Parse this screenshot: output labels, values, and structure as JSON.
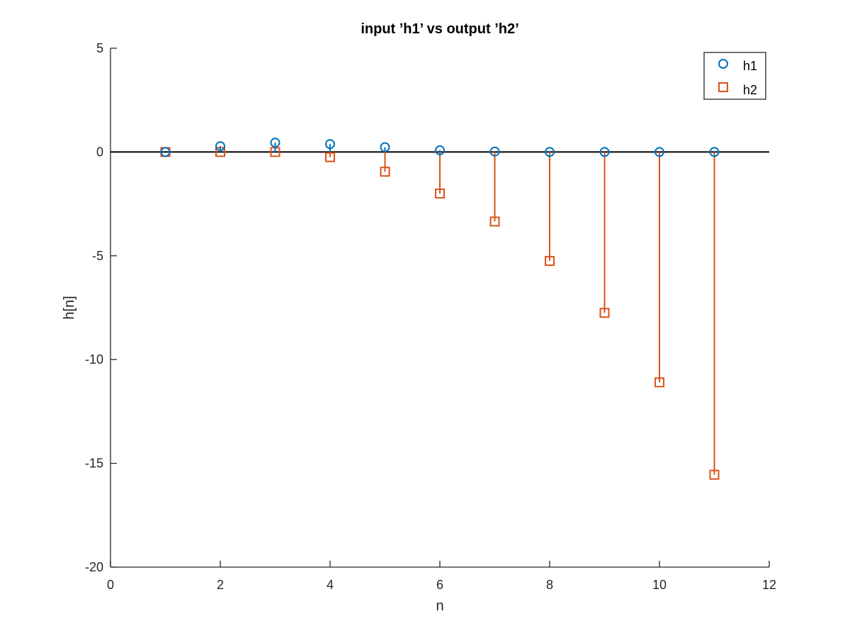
{
  "chart_data": {
    "type": "stem",
    "title": "input ’h1’ vs output ’h2’",
    "xlabel": "n",
    "ylabel": "h[n]",
    "xlim": [
      0,
      12
    ],
    "ylim": [
      -20,
      5
    ],
    "xticks": [
      0,
      2,
      4,
      6,
      8,
      10,
      12
    ],
    "xtick_labels": [
      "0",
      "2",
      "4",
      "6",
      "8",
      "10",
      "12"
    ],
    "yticks": [
      -20,
      -15,
      -10,
      -5,
      0,
      5
    ],
    "ytick_labels": [
      "-20",
      "-15",
      "-10",
      "-5",
      "0",
      "5"
    ],
    "grid": false,
    "baseline": 0,
    "legend_position": "top-right",
    "x": [
      1,
      2,
      3,
      4,
      5,
      6,
      7,
      8,
      9,
      10,
      11
    ],
    "series": [
      {
        "name": "h1",
        "marker": "circle",
        "color": "#0072BD",
        "values": [
          0.0,
          0.28,
          0.45,
          0.38,
          0.23,
          0.08,
          0.02,
          0.0,
          0.0,
          0.0,
          0.0
        ]
      },
      {
        "name": "h2",
        "marker": "square",
        "color": "#D95319",
        "values": [
          0.0,
          0.0,
          0.0,
          -0.25,
          -0.95,
          -2.0,
          -3.35,
          -5.25,
          -7.75,
          -11.1,
          -15.55
        ]
      }
    ]
  }
}
